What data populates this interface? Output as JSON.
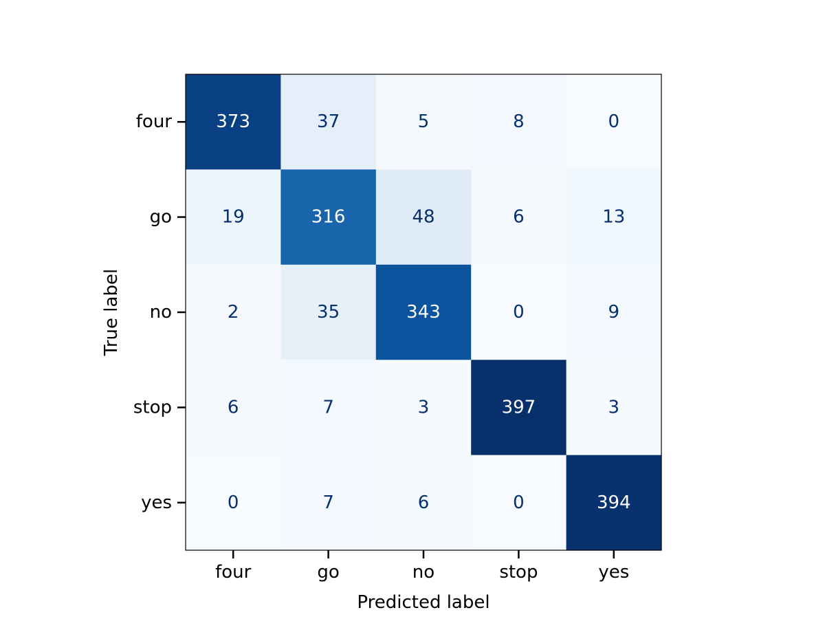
{
  "chart_data": {
    "type": "heatmap",
    "subtype": "confusion-matrix",
    "title": "",
    "xlabel": "Predicted label",
    "ylabel": "True label",
    "x_categories": [
      "four",
      "go",
      "no",
      "stop",
      "yes"
    ],
    "y_categories": [
      "four",
      "go",
      "no",
      "stop",
      "yes"
    ],
    "values": [
      [
        373,
        37,
        5,
        8,
        0
      ],
      [
        19,
        316,
        48,
        6,
        13
      ],
      [
        2,
        35,
        343,
        0,
        9
      ],
      [
        6,
        7,
        3,
        397,
        3
      ],
      [
        0,
        7,
        6,
        0,
        394
      ]
    ],
    "colormap": "Blues",
    "color_low": "#f7fbff",
    "color_high": "#08306b",
    "text_dark": "#08306b",
    "text_light": "#ffffff",
    "colorbar": false,
    "grid": false
  }
}
